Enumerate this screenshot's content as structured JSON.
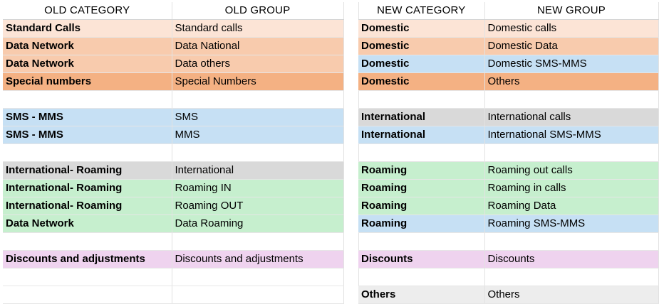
{
  "colors": {
    "peach_light": "#fce4d6",
    "peach": "#f8cbad",
    "salmon": "#f4b183",
    "sky": "#c6e0f4",
    "gray": "#d9d9d9",
    "green": "#c6efce",
    "lavender": "#efd3ef",
    "light_gray": "#ededed"
  },
  "old_table": {
    "headers": [
      "OLD CATEGORY",
      "OLD GROUP"
    ],
    "rows": [
      {
        "category": "Standard Calls",
        "group": "Standard calls",
        "color": "#fce4d6"
      },
      {
        "category": "Data Network",
        "group": "Data National",
        "color": "#f8cbad"
      },
      {
        "category": "Data Network",
        "group": "Data others",
        "color": "#f8cbad"
      },
      {
        "category": "Special numbers",
        "group": "Special Numbers",
        "color": "#f4b183"
      },
      {
        "category": "",
        "group": "",
        "color": ""
      },
      {
        "category": "SMS - MMS",
        "group": "SMS",
        "color": "#c6e0f4"
      },
      {
        "category": "SMS - MMS",
        "group": "MMS",
        "color": "#c6e0f4"
      },
      {
        "category": "",
        "group": "",
        "color": ""
      },
      {
        "category": "International- Roaming",
        "group": "International",
        "color": "#d9d9d9"
      },
      {
        "category": "International- Roaming",
        "group": "Roaming IN",
        "color": "#c6efce"
      },
      {
        "category": "International- Roaming",
        "group": "Roaming OUT",
        "color": "#c6efce"
      },
      {
        "category": "Data Network",
        "group": "Data Roaming",
        "color": "#c6efce"
      },
      {
        "category": "",
        "group": "",
        "color": ""
      },
      {
        "category": "Discounts and adjustments",
        "group": "Discounts and adjustments",
        "color": "#efd3ef"
      },
      {
        "category": "",
        "group": "",
        "color": ""
      },
      {
        "category": "",
        "group": "",
        "color": ""
      }
    ]
  },
  "new_table": {
    "headers": [
      "NEW CATEGORY",
      "NEW GROUP"
    ],
    "rows": [
      {
        "category": "Domestic",
        "group": "Domestic calls",
        "color": "#fce4d6"
      },
      {
        "category": "Domestic",
        "group": "Domestic Data",
        "color": "#f8cbad"
      },
      {
        "category": "Domestic",
        "group": "Domestic SMS-MMS",
        "color": "#c6e0f4"
      },
      {
        "category": "Domestic",
        "group": "Others",
        "color": "#f4b183"
      },
      {
        "category": "",
        "group": "",
        "color": ""
      },
      {
        "category": "International",
        "group": "International calls",
        "color": "#d9d9d9"
      },
      {
        "category": "International",
        "group": "International SMS-MMS",
        "color": "#c6e0f4"
      },
      {
        "category": "",
        "group": "",
        "color": ""
      },
      {
        "category": "Roaming",
        "group": "Roaming out calls",
        "color": "#c6efce"
      },
      {
        "category": "Roaming",
        "group": "Roaming in calls",
        "color": "#c6efce"
      },
      {
        "category": "Roaming",
        "group": "Roaming Data",
        "color": "#c6efce"
      },
      {
        "category": "Roaming",
        "group": "Roaming SMS-MMS",
        "color": "#c6e0f4"
      },
      {
        "category": "",
        "group": "",
        "color": ""
      },
      {
        "category": "Discounts",
        "group": "Discounts",
        "color": "#efd3ef"
      },
      {
        "category": "",
        "group": "",
        "color": ""
      },
      {
        "category": "Others",
        "group": "Others",
        "color": "#ededed"
      }
    ]
  }
}
